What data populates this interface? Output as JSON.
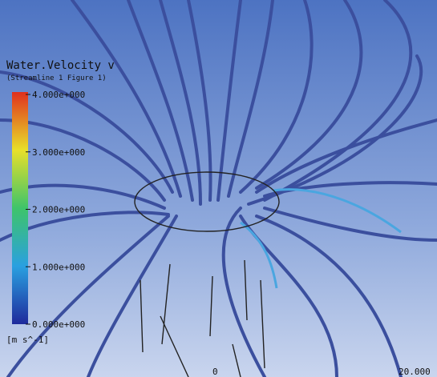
{
  "legend": {
    "title": "Water.Velocity v",
    "subtitle": "(Streamline 1 Figure 1)",
    "ticks": [
      "4.000e+000",
      "3.000e+000",
      "2.000e+000",
      "1.000e+000",
      "0.000e+000"
    ],
    "unit": "[m s^-1]"
  },
  "scale": {
    "start": "0",
    "end": "20.000"
  }
}
